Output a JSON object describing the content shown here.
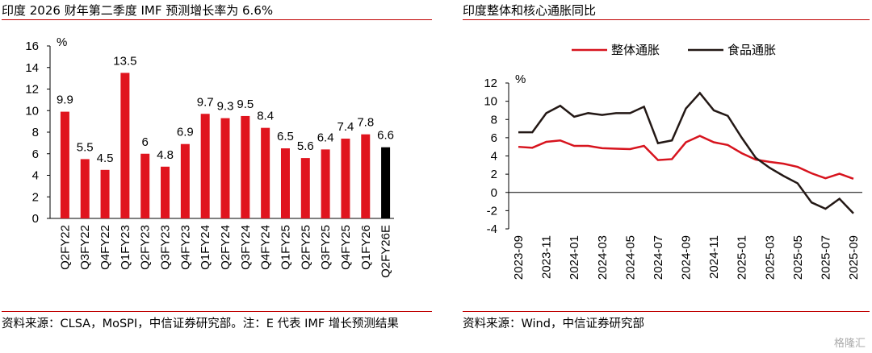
{
  "chart_data": [
    {
      "type": "bar",
      "title": "印度 2026 财年第二季度 IMF 预测增长率为 6.6%",
      "unit_label": "%",
      "categories": [
        "Q2FY22",
        "Q3FY22",
        "Q4FY22",
        "Q1FY23",
        "Q2FY23",
        "Q3FY23",
        "Q4FY23",
        "Q1FY24",
        "Q2FY24",
        "Q3FY24",
        "Q4FY24",
        "Q1FY25",
        "Q2FY25",
        "Q3FY25",
        "Q4FY25",
        "Q1FY26",
        "Q2FY26E"
      ],
      "values": [
        9.9,
        5.5,
        4.5,
        13.5,
        6,
        4.8,
        6.9,
        9.7,
        9.3,
        9.5,
        8.4,
        6.5,
        5.6,
        6.4,
        7.4,
        7.8,
        6.6
      ],
      "colors": [
        "#e0141e",
        "#e0141e",
        "#e0141e",
        "#e0141e",
        "#e0141e",
        "#e0141e",
        "#e0141e",
        "#e0141e",
        "#e0141e",
        "#e0141e",
        "#e0141e",
        "#e0141e",
        "#e0141e",
        "#e0141e",
        "#e0141e",
        "#e0141e",
        "#000000"
      ],
      "ylim": [
        0,
        16
      ],
      "yticks": [
        0,
        2,
        4,
        6,
        8,
        10,
        12,
        14,
        16
      ],
      "source": "资料来源：CLSA，MoSPI，中信证券研究部。注：E 代表 IMF 增长预测结果"
    },
    {
      "type": "line",
      "title": "印度整体和核心通胀同比",
      "unit_label": "%",
      "categories": [
        "2023-09",
        null,
        "2023-11",
        null,
        "2024-01",
        null,
        "2024-03",
        null,
        "2024-05",
        null,
        "2024-07",
        null,
        "2024-09",
        null,
        "2024-11",
        null,
        "2025-01",
        null,
        "2025-03",
        null,
        "2025-05",
        null,
        "2025-07",
        null,
        "2025-09"
      ],
      "series": [
        {
          "name": "整体通胀",
          "color": "#d7141e",
          "values": [
            5.0,
            4.9,
            5.55,
            5.7,
            5.1,
            5.1,
            4.85,
            4.8,
            4.75,
            5.1,
            3.55,
            3.65,
            5.5,
            6.2,
            5.5,
            5.2,
            4.3,
            3.6,
            3.35,
            3.15,
            2.8,
            2.1,
            1.55,
            2.05,
            1.5
          ]
        },
        {
          "name": "食品通胀",
          "color": "#231815",
          "values": [
            6.6,
            6.6,
            8.7,
            9.5,
            8.3,
            8.7,
            8.5,
            8.7,
            8.7,
            9.4,
            5.4,
            5.7,
            9.2,
            10.9,
            9.0,
            8.4,
            6.0,
            3.8,
            2.7,
            1.8,
            1.0,
            -1.1,
            -1.8,
            -0.7,
            -2.3
          ]
        }
      ],
      "ylim": [
        -4,
        12
      ],
      "yticks": [
        -4,
        -2,
        0,
        2,
        4,
        6,
        8,
        10,
        12
      ],
      "legend": "top",
      "source": "资料来源：Wind，中信证券研究部"
    }
  ],
  "watermark": "格隆汇"
}
